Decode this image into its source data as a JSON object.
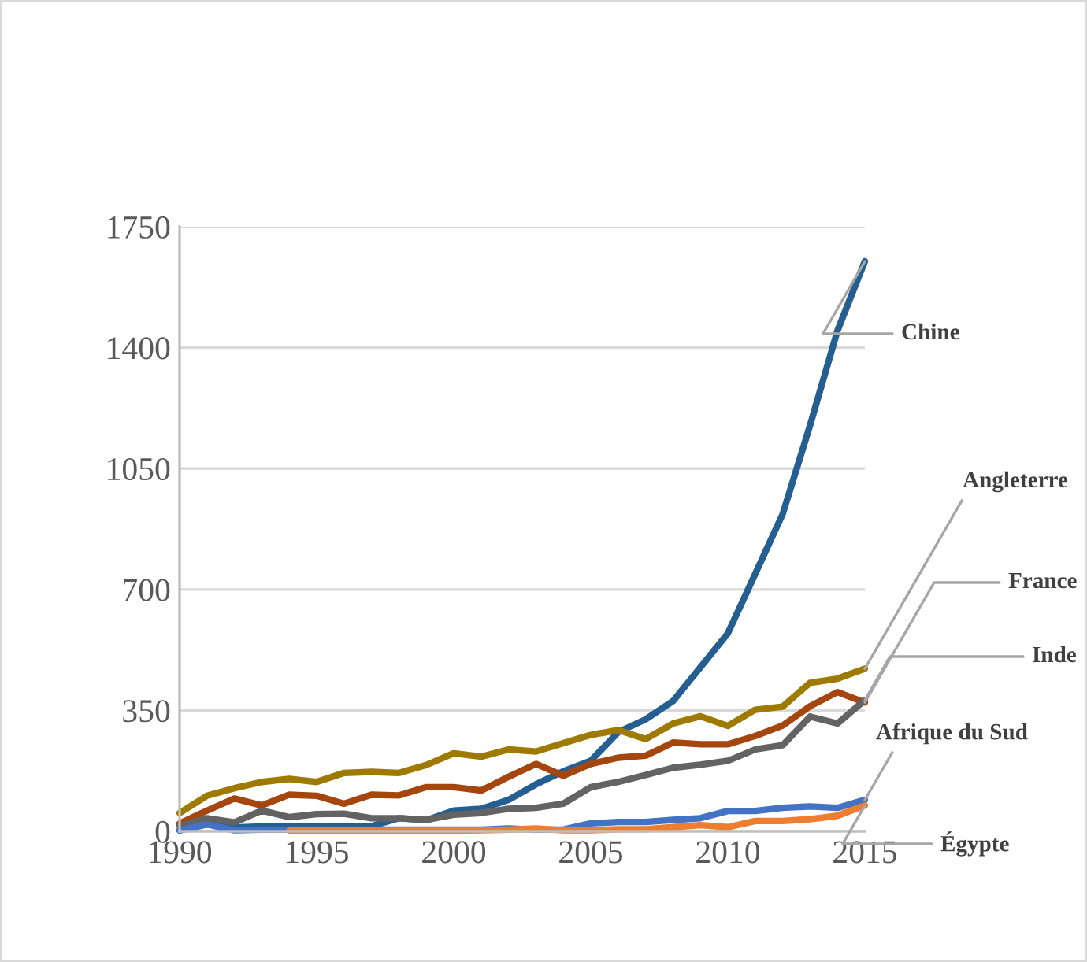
{
  "chart_data": {
    "type": "line",
    "x": [
      1990,
      1991,
      1992,
      1993,
      1994,
      1995,
      1996,
      1997,
      1998,
      1999,
      2000,
      2001,
      2002,
      2003,
      2004,
      2005,
      2006,
      2007,
      2008,
      2009,
      2010,
      2011,
      2012,
      2013,
      2014,
      2015
    ],
    "series": [
      {
        "name": "Chine",
        "color": "#255e91",
        "values": [
          3,
          20,
          11,
          14,
          15,
          15,
          15,
          15,
          38,
          32,
          60,
          65,
          91,
          136,
          174,
          204,
          287,
          324,
          377,
          475,
          573,
          745,
          918,
          1175,
          1449,
          1650
        ]
      },
      {
        "name": "Angleterre",
        "color": "#9e7b00",
        "values": [
          53,
          103,
          125,
          143,
          152,
          143,
          169,
          172,
          169,
          192,
          226,
          216,
          237,
          231,
          255,
          279,
          293,
          267,
          312,
          333,
          305,
          352,
          361,
          430,
          442,
          471
        ]
      },
      {
        "name": "France",
        "color": "#a5460f",
        "values": [
          23,
          60,
          95,
          75,
          106,
          103,
          80,
          106,
          104,
          128,
          128,
          118,
          158,
          195,
          161,
          195,
          213,
          219,
          257,
          252,
          252,
          276,
          306,
          362,
          403,
          373
        ]
      },
      {
        "name": "Inde",
        "color": "#636363",
        "values": [
          15,
          38,
          26,
          60,
          41,
          50,
          51,
          38,
          38,
          33,
          48,
          53,
          65,
          68,
          80,
          128,
          143,
          163,
          184,
          193,
          204,
          237,
          249,
          332,
          312,
          380
        ]
      },
      {
        "name": "Afrique du Sud",
        "color": "#4472c4",
        "values": [
          3,
          20,
          3,
          5,
          5,
          5,
          5,
          5,
          5,
          5,
          5,
          5,
          8,
          5,
          5,
          23,
          27,
          27,
          33,
          38,
          59,
          59,
          68,
          72,
          68,
          91
        ]
      },
      {
        "name": "Égypte",
        "color": "#ed7d31",
        "values": [
          null,
          null,
          null,
          null,
          2,
          2,
          2,
          2,
          2,
          2,
          2,
          3,
          5,
          8,
          3,
          3,
          6,
          6,
          12,
          18,
          12,
          30,
          30,
          35,
          45,
          75
        ]
      }
    ],
    "xlim": [
      1990,
      2015
    ],
    "xticks": [
      1990,
      1995,
      2000,
      2005,
      2010,
      2015
    ],
    "ylim": [
      0,
      1750
    ],
    "yticks": [
      0,
      350,
      700,
      1050,
      1400,
      1750
    ],
    "grid": "y",
    "marker": "none",
    "line_style": "solid"
  }
}
